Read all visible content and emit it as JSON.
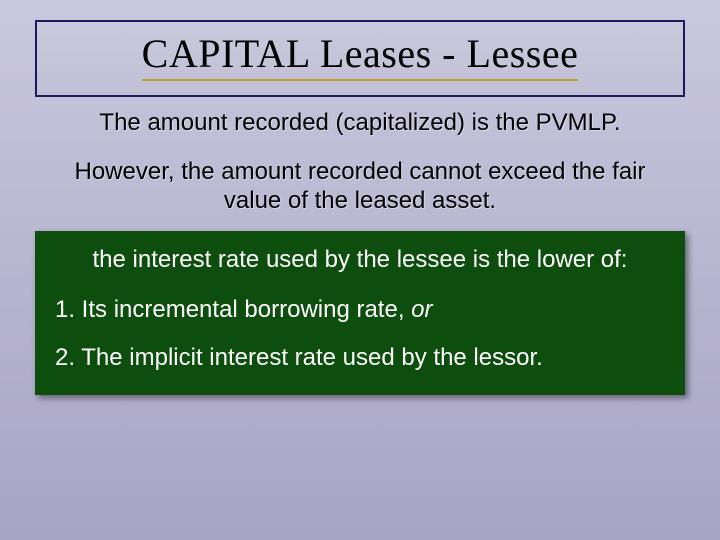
{
  "slide": {
    "background_gradient": [
      "#cac8de",
      "#b8b5d0",
      "#a8a4c5"
    ],
    "title": {
      "text": "CAPITAL  Leases - Lessee",
      "font_family": "Times New Roman",
      "font_size_pt": 30,
      "color": "#000000",
      "underline_color": "#c0a030",
      "box_border_color": "#1a1a5a"
    },
    "subtitle_1": "The amount recorded (capitalized) is the PVMLP.",
    "subtitle_2": "However, the amount recorded cannot exceed the fair value of the leased asset.",
    "panel": {
      "background_color": "#0d4d0d",
      "text_color": "#ffffff",
      "heading": "the interest rate used by the lessee is the lower of:",
      "item_1_prefix": "1.  Its incremental borrowing rate, ",
      "item_1_italic": "or",
      "item_2": "2.  The implicit interest rate used by the lessor."
    },
    "body_font_size_pt": 18
  }
}
